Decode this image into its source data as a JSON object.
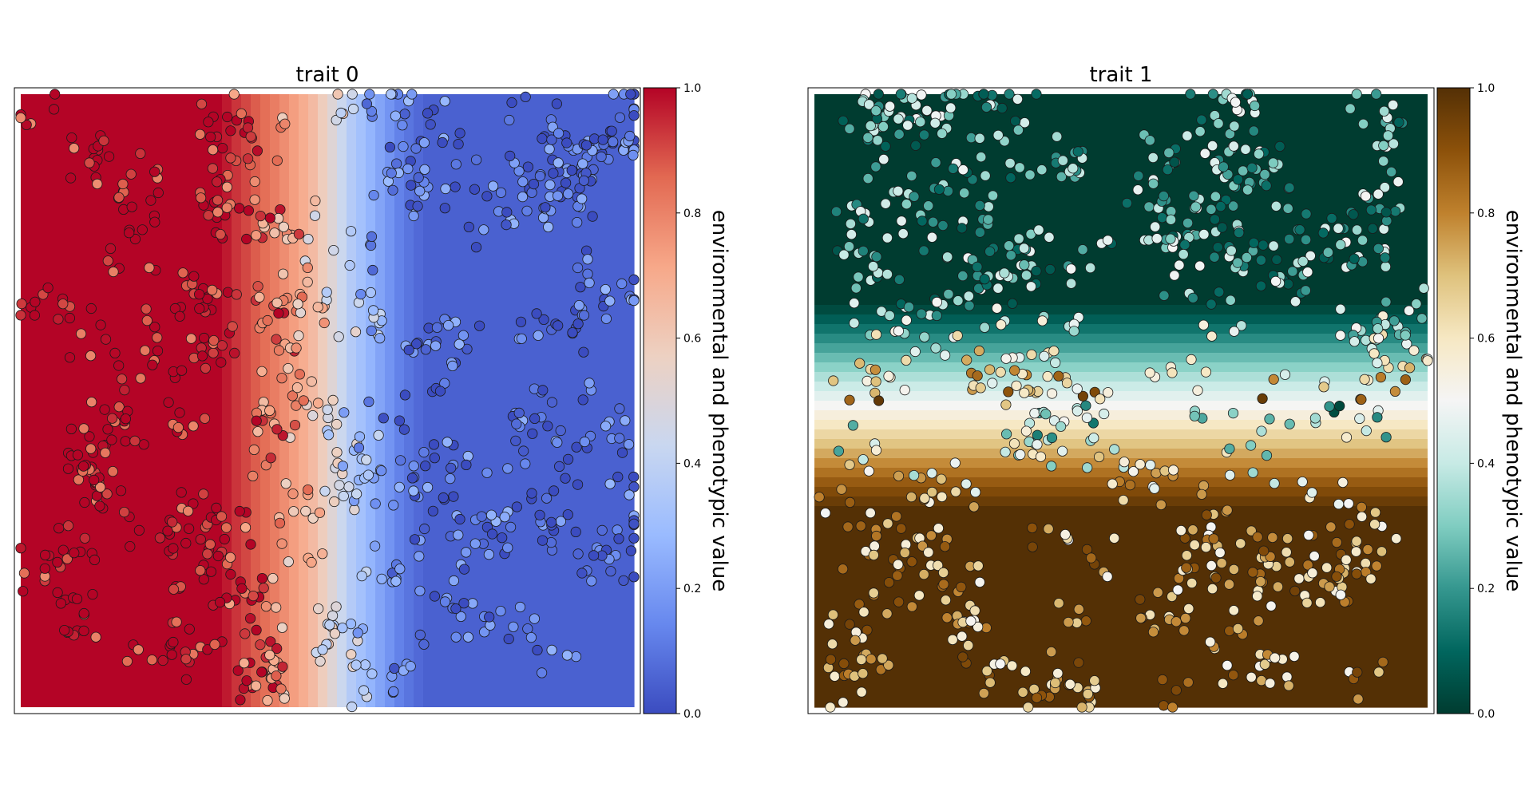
{
  "chart_data": [
    {
      "type": "heatmap",
      "title": "trait 0",
      "gradient_axis": "x",
      "xlim": [
        0,
        1
      ],
      "ylim": [
        0,
        1
      ],
      "colormap": "coolwarm",
      "colormap_stops": [
        "#3b4cc0",
        "#6788ee",
        "#9abbff",
        "#c9d7f0",
        "#edd1c2",
        "#f7a889",
        "#e26952",
        "#b40426"
      ],
      "environment_profile": {
        "x": [
          0.0,
          0.33,
          0.34,
          0.36,
          0.38,
          0.4,
          0.42,
          0.44,
          0.46,
          0.48,
          0.5,
          0.52,
          0.54,
          0.56,
          0.58,
          0.6,
          0.62,
          0.66,
          1.0
        ],
        "value": [
          1.0,
          1.0,
          0.95,
          0.92,
          0.88,
          0.84,
          0.8,
          0.75,
          0.7,
          0.64,
          0.55,
          0.45,
          0.36,
          0.3,
          0.24,
          0.18,
          0.12,
          0.05,
          0.05
        ]
      },
      "colorbar": {
        "label": "environmental and phenotypic value",
        "ticks": [
          "0.0",
          "0.2",
          "0.4",
          "0.6",
          "0.8",
          "1.0"
        ],
        "range": [
          0,
          1
        ]
      },
      "individuals": "about 1000 phenotype points scattered over the landscape, colored by phenotypic value"
    },
    {
      "type": "heatmap",
      "title": "trait 1",
      "gradient_axis": "y",
      "xlim": [
        0,
        1
      ],
      "ylim": [
        0,
        1
      ],
      "colormap": "BrBG",
      "colormap_stops": [
        "#003c30",
        "#01665e",
        "#35978f",
        "#80cdc1",
        "#c7eae5",
        "#f5f5f5",
        "#f6e8c3",
        "#dfc27d",
        "#bf812d",
        "#8c510a",
        "#543005"
      ],
      "environment_profile": {
        "y": [
          0.0,
          0.34,
          0.36,
          0.38,
          0.4,
          0.42,
          0.44,
          0.46,
          0.48,
          0.5,
          0.52,
          0.54,
          0.56,
          0.58,
          0.6,
          0.62,
          0.64,
          0.66,
          0.68,
          1.0
        ],
        "value": [
          0.0,
          0.0,
          0.06,
          0.12,
          0.18,
          0.24,
          0.3,
          0.36,
          0.42,
          0.48,
          0.54,
          0.6,
          0.66,
          0.72,
          0.78,
          0.84,
          0.9,
          0.95,
          1.0,
          1.0
        ]
      },
      "colorbar": {
        "label": "environmental and phenotypic value",
        "ticks": [
          "0.0",
          "0.2",
          "0.4",
          "0.6",
          "0.8",
          "1.0"
        ],
        "range": [
          0,
          1
        ]
      },
      "individuals": "about 1000 phenotype points scattered over the landscape, colored by phenotypic value"
    }
  ]
}
